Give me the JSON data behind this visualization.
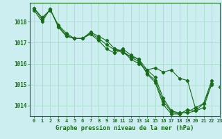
{
  "title": "Graphe pression niveau de la mer (hPa)",
  "background_color": "#cceef0",
  "grid_color": "#aaddcc",
  "line_color": "#1a6b1a",
  "xlim": [
    -0.5,
    23
  ],
  "ylim": [
    1013.5,
    1018.9
  ],
  "yticks": [
    1014,
    1015,
    1016,
    1017,
    1018
  ],
  "xticks": [
    0,
    1,
    2,
    3,
    4,
    5,
    6,
    7,
    8,
    9,
    10,
    11,
    12,
    13,
    14,
    15,
    16,
    17,
    18,
    19,
    20,
    21,
    22,
    23
  ],
  "series": [
    [
      1018.65,
      1018.2,
      1018.55,
      1017.85,
      1017.45,
      1017.2,
      1017.2,
      1017.5,
      1017.3,
      1017.1,
      1016.7,
      1016.5,
      1016.35,
      1016.2,
      1015.7,
      1015.35,
      1014.35,
      1013.75,
      1013.65,
      1013.65,
      1013.75,
      1014.1,
      1015.2,
      null
    ],
    [
      1018.65,
      1018.1,
      1018.6,
      1017.8,
      1017.35,
      1017.2,
      1017.2,
      1017.45,
      1017.2,
      1016.9,
      1016.65,
      1016.6,
      1016.3,
      1016.1,
      1015.55,
      1015.2,
      1014.2,
      1013.7,
      1013.6,
      1013.8,
      1013.75,
      1013.9,
      1015.05,
      null
    ],
    [
      1018.55,
      1018.0,
      1018.6,
      1017.75,
      1017.3,
      1017.2,
      1017.2,
      1017.4,
      1017.1,
      1016.7,
      1016.5,
      1016.7,
      1016.4,
      1016.2,
      1015.5,
      1015.1,
      1014.05,
      1013.6,
      1013.6,
      1013.7,
      1013.9,
      1014.1,
      1015.0,
      null
    ],
    [
      null,
      null,
      null,
      null,
      null,
      null,
      null,
      null,
      null,
      null,
      1016.7,
      1016.6,
      1016.2,
      1016.0,
      1015.7,
      1015.8,
      1015.6,
      1015.7,
      1015.3,
      1015.2,
      1013.85,
      null,
      null,
      1014.9
    ]
  ]
}
